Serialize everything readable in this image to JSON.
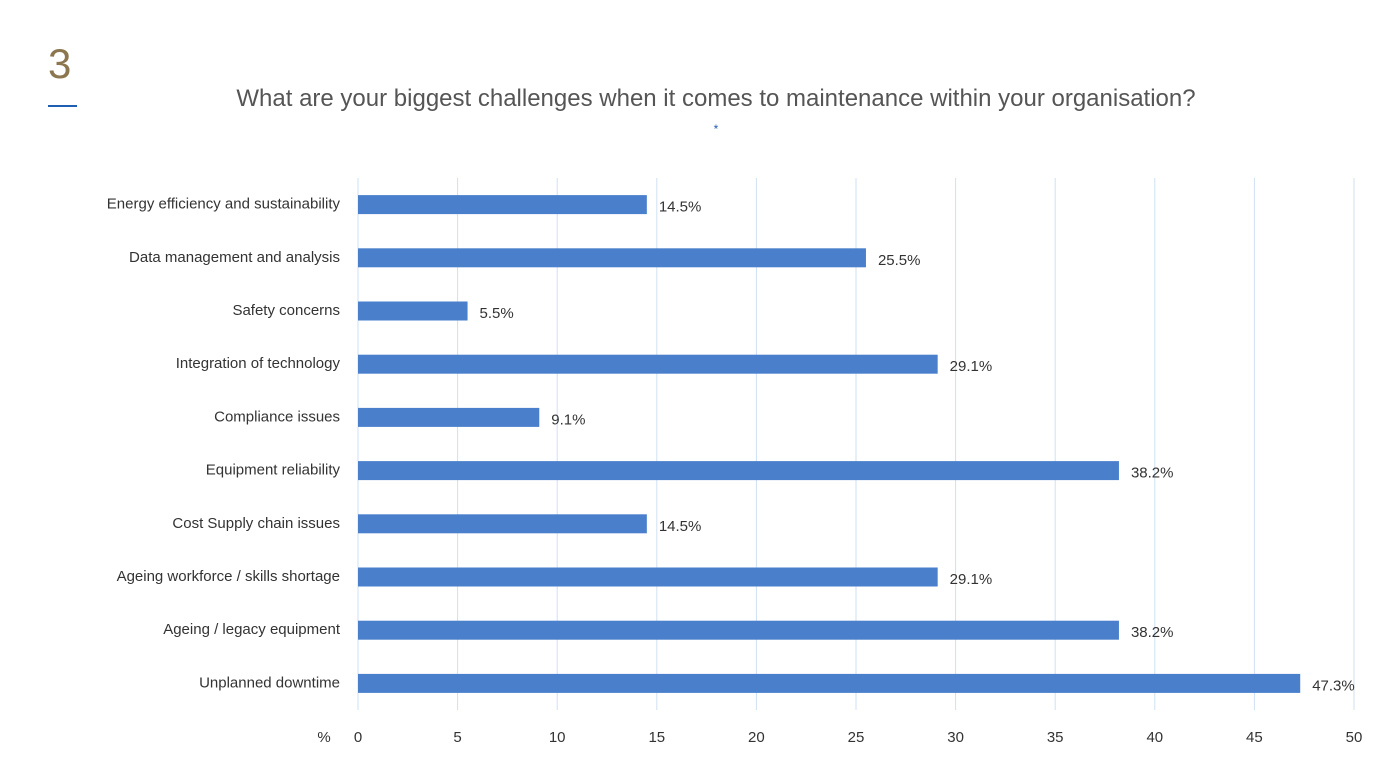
{
  "page_number": "3",
  "chart_data": {
    "type": "bar",
    "orientation": "horizontal",
    "title": "What are your biggest challenges when it comes to maintenance within your organisation?",
    "title_note": "*",
    "x_unit_label": "%",
    "categories": [
      "Energy efficiency and sustainability",
      "Data management and analysis",
      "Safety concerns",
      "Integration of technology",
      "Compliance issues",
      "Equipment reliability",
      "Cost Supply chain issues",
      "Ageing workforce / skills shortage",
      "Ageing / legacy equipment",
      "Unplanned downtime"
    ],
    "values": [
      14.5,
      25.5,
      5.5,
      29.1,
      9.1,
      38.2,
      14.5,
      29.1,
      38.2,
      47.3
    ],
    "value_labels": [
      "14.5%",
      "25.5%",
      "5.5%",
      "29.1%",
      "9.1%",
      "38.2%",
      "14.5%",
      "29.1%",
      "38.2%",
      "47.3%"
    ],
    "color": "#4a7fcc",
    "xlim": [
      0,
      50
    ],
    "xticks": [
      0,
      5,
      10,
      15,
      20,
      25,
      30,
      35,
      40,
      45,
      50
    ],
    "grid": true
  }
}
